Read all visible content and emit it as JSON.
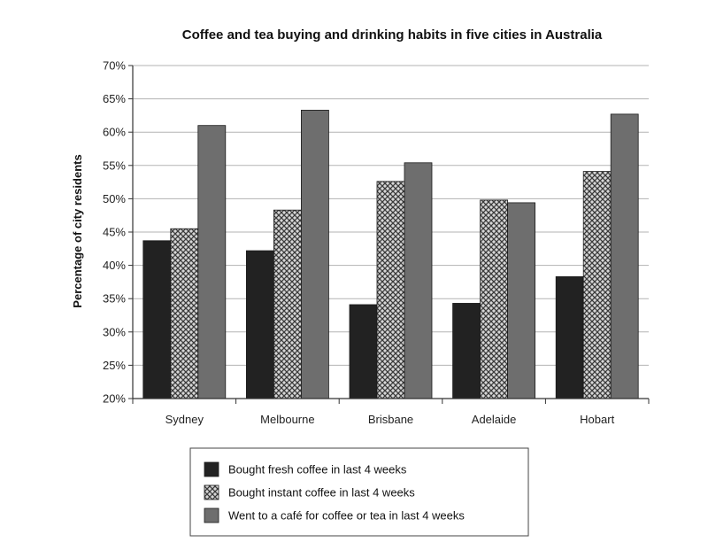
{
  "chart_data": {
    "type": "bar",
    "title": "Coffee and tea buying and drinking habits in five cities in Australia",
    "xlabel": "",
    "ylabel": "Percentage of city residents",
    "categories": [
      "Sydney",
      "Melbourne",
      "Brisbane",
      "Adelaide",
      "Hobart"
    ],
    "yticks": [
      "20%",
      "25%",
      "30%",
      "35%",
      "40%",
      "45%",
      "50%",
      "55%",
      "60%",
      "65%",
      "70%"
    ],
    "ylim": [
      20,
      70
    ],
    "grid": true,
    "legend_position": "bottom",
    "series": [
      {
        "name": "Bought fresh coffee in last 4 weeks",
        "values": [
          43.7,
          42.2,
          34.1,
          34.3,
          38.3
        ],
        "color": "#222222",
        "pattern": "solid"
      },
      {
        "name": "Bought instant coffee in last 4 weeks",
        "values": [
          45.5,
          48.3,
          52.6,
          49.8,
          54.1
        ],
        "color": "#888888",
        "pattern": "crosshatch"
      },
      {
        "name": "Went to a café for coffee or tea in last 4 weeks",
        "values": [
          61.0,
          63.3,
          55.4,
          49.4,
          62.7
        ],
        "color": "#6e6e6e",
        "pattern": "solid"
      }
    ]
  }
}
